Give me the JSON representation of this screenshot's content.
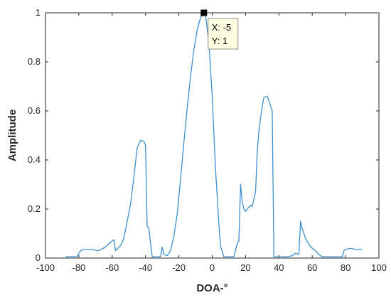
{
  "chart_data": {
    "type": "line",
    "xlabel": "DOA-°",
    "ylabel": "Amplitude",
    "xlim": [
      -100,
      100
    ],
    "ylim": [
      0,
      1
    ],
    "xticks": [
      "-100",
      "-80",
      "-60",
      "-40",
      "-20",
      "0",
      "20",
      "40",
      "60",
      "80",
      "100"
    ],
    "yticks": [
      "0",
      "0.2",
      "0.4",
      "0.6",
      "0.8",
      "1"
    ],
    "grid": false,
    "line_color": "#3b8fd1",
    "series": [
      {
        "x": [
          -88,
          -81,
          -79,
          -77,
          -73,
          -68,
          -64,
          -61,
          -59,
          -58,
          -55,
          -53,
          -51,
          -49,
          -47,
          -45,
          -43,
          -41,
          -40,
          -39,
          -38,
          -36,
          -31,
          -30,
          -29,
          -27,
          -25,
          -23,
          -21,
          -19,
          -17,
          -15,
          -13,
          -11,
          -9,
          -7,
          -5,
          -4,
          -2,
          0,
          2,
          4,
          5,
          7,
          10,
          13,
          15,
          16,
          17,
          18,
          19,
          20,
          21,
          23,
          24,
          26,
          27,
          28,
          30,
          31,
          33,
          35,
          36,
          37,
          38,
          40,
          45,
          48,
          50,
          52,
          53,
          54,
          56,
          58,
          60,
          62,
          64,
          66,
          70,
          75,
          78,
          79,
          80,
          83,
          86,
          90
        ],
        "y": [
          0.005,
          0.006,
          0.03,
          0.035,
          0.035,
          0.03,
          0.045,
          0.065,
          0.075,
          0.03,
          0.05,
          0.08,
          0.15,
          0.22,
          0.33,
          0.45,
          0.48,
          0.475,
          0.46,
          0.13,
          0.12,
          0.005,
          0.005,
          0.045,
          0.015,
          0.01,
          0.03,
          0.09,
          0.18,
          0.32,
          0.47,
          0.61,
          0.74,
          0.85,
          0.93,
          0.98,
          1.0,
          0.99,
          0.88,
          0.66,
          0.36,
          0.14,
          0.05,
          0.005,
          0.005,
          0.005,
          0.06,
          0.07,
          0.3,
          0.23,
          0.2,
          0.19,
          0.2,
          0.215,
          0.21,
          0.27,
          0.43,
          0.52,
          0.62,
          0.655,
          0.66,
          0.62,
          0.6,
          0.005,
          0.005,
          0.005,
          0.005,
          0.01,
          0.02,
          0.015,
          0.15,
          0.12,
          0.08,
          0.055,
          0.04,
          0.03,
          0.015,
          0.005,
          0.005,
          0.005,
          0.005,
          0.03,
          0.035,
          0.04,
          0.035,
          0.035
        ]
      }
    ],
    "annotation": {
      "x": -5,
      "y": 1,
      "x_text": "X: -5",
      "y_text": "Y: 1"
    }
  }
}
